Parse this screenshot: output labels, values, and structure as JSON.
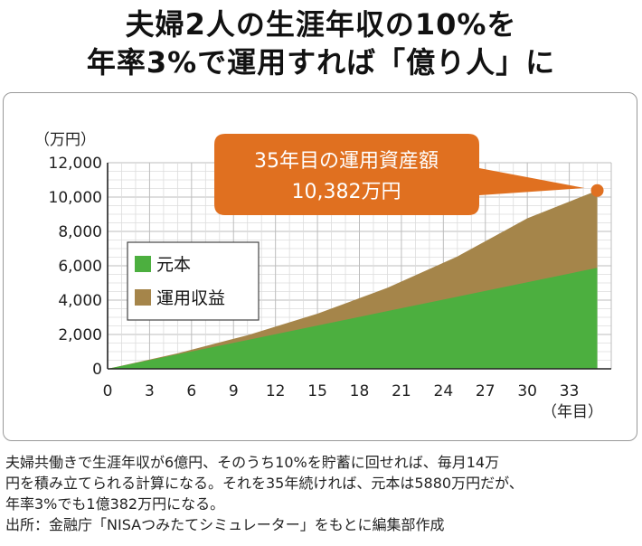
{
  "title": {
    "line1": "夫婦2人の生涯年収の10%を",
    "line2": "年率3%で運用すれば「億り人」に"
  },
  "colors": {
    "principal": "#4caf3f",
    "gain": "#a5854a",
    "callout": "#e07020",
    "grid": "#bdbdbd"
  },
  "chart_data": {
    "type": "area",
    "y_unit_label": "（万円）",
    "x_unit_label": "（年目）",
    "x_ticks": [
      0,
      3,
      6,
      9,
      12,
      15,
      18,
      21,
      24,
      27,
      30,
      33
    ],
    "y_ticks": [
      "0",
      "2,000",
      "4,000",
      "6,000",
      "8,000",
      "10,000",
      "12,000"
    ],
    "xlim": [
      0,
      36
    ],
    "ylim": [
      0,
      12000
    ],
    "grid": true,
    "legend_position": "left-middle",
    "series": [
      {
        "name": "元本",
        "x": [
          0,
          5,
          10,
          15,
          20,
          25,
          30,
          35
        ],
        "values": [
          0,
          840,
          1680,
          2520,
          3360,
          4200,
          5040,
          5880
        ]
      },
      {
        "name": "運用収益",
        "x": [
          0,
          5,
          10,
          15,
          20,
          25,
          30,
          35
        ],
        "values": [
          0,
          63,
          276,
          690,
          1356,
          2340,
          3720,
          4502
        ]
      }
    ],
    "total": {
      "x": [
        0,
        5,
        10,
        15,
        20,
        25,
        30,
        35
      ],
      "values": [
        0,
        903,
        1956,
        3210,
        4716,
        6540,
        8760,
        10382
      ]
    },
    "annotation": {
      "line1": "35年目の運用資産額",
      "line2": "10,382万円",
      "x": 35,
      "y": 10382
    }
  },
  "footnote": {
    "line1": "夫婦共働きで生涯年収が6億円、そのうち10%を貯蓄に回せれば、毎月14万",
    "line2": "円を積み立てられる計算になる。それを35年続ければ、元本は5880万円だが、",
    "line3": "年率3%でも1億382万円になる。",
    "source": "出所：金融庁「NISAつみたてシミュレーター」をもとに編集部作成"
  }
}
